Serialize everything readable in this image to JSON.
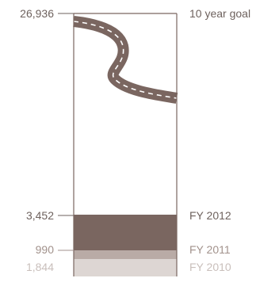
{
  "colors": {
    "frame": "#7a6660",
    "road": "#7a6660",
    "road_dash": "#ffffff",
    "fy2012": "#7a6660",
    "fy2011": "#b9aba6",
    "fy2010": "#ddd6d3",
    "tick_dark": "#6e625e",
    "tick_mid": "#a2928c",
    "tick_light": "#c9bfbb",
    "label_dark": "#6e625e",
    "label_mid": "#a2928c",
    "label_light": "#c9bfbb"
  },
  "chart_data": {
    "type": "bar",
    "orientation": "vertical-stacked",
    "goal": {
      "value": 26936,
      "value_label": "26,936",
      "label": "10 year goal"
    },
    "segments": [
      {
        "name": "FY 2010",
        "value": 1844,
        "value_label": "1,844",
        "color_key": "fy2010",
        "tone": "light"
      },
      {
        "name": "FY 2011",
        "value": 990,
        "value_label": "990",
        "color_key": "fy2011",
        "tone": "mid"
      },
      {
        "name": "FY 2012",
        "value": 3452,
        "value_label": "3,452",
        "color_key": "fy2012",
        "tone": "dark"
      }
    ],
    "decoration": "winding road icon inside the empty portion of the goal bar"
  }
}
